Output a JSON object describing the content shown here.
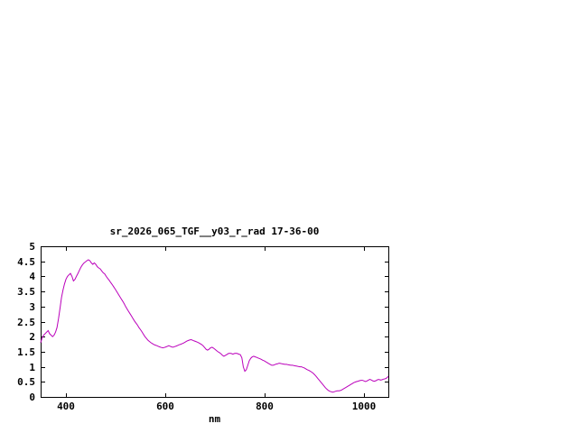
{
  "window": {
    "background": "#ffffff"
  },
  "chart_data": {
    "type": "line",
    "title": "sr_2026_065_TGF__y03_r_rad 17-36-00",
    "xlabel": "nm",
    "ylabel": "",
    "xlim": [
      350,
      1050
    ],
    "ylim": [
      0,
      5
    ],
    "xticks": [
      400,
      600,
      800,
      1000
    ],
    "yticks": [
      0,
      0.5,
      1,
      1.5,
      2,
      2.5,
      3,
      3.5,
      4,
      4.5,
      5
    ],
    "grid": false,
    "legend": "none",
    "line_color": "#bb00bb",
    "axis_color": "#000000",
    "text_color": "#000000",
    "points": [
      [
        350,
        1.8
      ],
      [
        353,
        1.95
      ],
      [
        356,
        2.05
      ],
      [
        359,
        2.1
      ],
      [
        362,
        2.15
      ],
      [
        365,
        2.2
      ],
      [
        368,
        2.1
      ],
      [
        371,
        2.05
      ],
      [
        374,
        2.0
      ],
      [
        377,
        2.05
      ],
      [
        380,
        2.15
      ],
      [
        383,
        2.3
      ],
      [
        386,
        2.6
      ],
      [
        389,
        2.95
      ],
      [
        392,
        3.3
      ],
      [
        395,
        3.55
      ],
      [
        398,
        3.75
      ],
      [
        401,
        3.9
      ],
      [
        404,
        4.0
      ],
      [
        407,
        4.05
      ],
      [
        410,
        4.1
      ],
      [
        413,
        4.0
      ],
      [
        416,
        3.85
      ],
      [
        419,
        3.9
      ],
      [
        422,
        4.0
      ],
      [
        425,
        4.1
      ],
      [
        428,
        4.2
      ],
      [
        431,
        4.3
      ],
      [
        434,
        4.38
      ],
      [
        437,
        4.44
      ],
      [
        440,
        4.48
      ],
      [
        443,
        4.52
      ],
      [
        446,
        4.55
      ],
      [
        449,
        4.52
      ],
      [
        452,
        4.45
      ],
      [
        455,
        4.4
      ],
      [
        458,
        4.45
      ],
      [
        461,
        4.4
      ],
      [
        464,
        4.32
      ],
      [
        467,
        4.28
      ],
      [
        470,
        4.25
      ],
      [
        473,
        4.18
      ],
      [
        476,
        4.12
      ],
      [
        479,
        4.08
      ],
      [
        482,
        4.0
      ],
      [
        485,
        3.93
      ],
      [
        488,
        3.87
      ],
      [
        491,
        3.8
      ],
      [
        494,
        3.73
      ],
      [
        497,
        3.66
      ],
      [
        500,
        3.58
      ],
      [
        503,
        3.5
      ],
      [
        506,
        3.42
      ],
      [
        509,
        3.34
      ],
      [
        512,
        3.26
      ],
      [
        515,
        3.18
      ],
      [
        518,
        3.1
      ],
      [
        521,
        3.0
      ],
      [
        524,
        2.92
      ],
      [
        527,
        2.84
      ],
      [
        530,
        2.76
      ],
      [
        533,
        2.68
      ],
      [
        536,
        2.6
      ],
      [
        539,
        2.52
      ],
      [
        542,
        2.45
      ],
      [
        545,
        2.38
      ],
      [
        548,
        2.3
      ],
      [
        551,
        2.23
      ],
      [
        554,
        2.16
      ],
      [
        557,
        2.08
      ],
      [
        560,
        2.0
      ],
      [
        563,
        1.94
      ],
      [
        566,
        1.88
      ],
      [
        569,
        1.84
      ],
      [
        572,
        1.8
      ],
      [
        575,
        1.77
      ],
      [
        578,
        1.74
      ],
      [
        581,
        1.72
      ],
      [
        584,
        1.7
      ],
      [
        587,
        1.68
      ],
      [
        590,
        1.66
      ],
      [
        593,
        1.64
      ],
      [
        596,
        1.63
      ],
      [
        599,
        1.64
      ],
      [
        602,
        1.66
      ],
      [
        605,
        1.68
      ],
      [
        608,
        1.7
      ],
      [
        611,
        1.68
      ],
      [
        614,
        1.66
      ],
      [
        617,
        1.65
      ],
      [
        620,
        1.67
      ],
      [
        623,
        1.69
      ],
      [
        626,
        1.71
      ],
      [
        629,
        1.73
      ],
      [
        632,
        1.75
      ],
      [
        635,
        1.77
      ],
      [
        638,
        1.79
      ],
      [
        641,
        1.82
      ],
      [
        644,
        1.85
      ],
      [
        647,
        1.87
      ],
      [
        650,
        1.89
      ],
      [
        653,
        1.9
      ],
      [
        656,
        1.88
      ],
      [
        659,
        1.86
      ],
      [
        662,
        1.84
      ],
      [
        665,
        1.82
      ],
      [
        668,
        1.8
      ],
      [
        671,
        1.77
      ],
      [
        674,
        1.74
      ],
      [
        677,
        1.7
      ],
      [
        680,
        1.64
      ],
      [
        683,
        1.58
      ],
      [
        686,
        1.55
      ],
      [
        689,
        1.58
      ],
      [
        692,
        1.63
      ],
      [
        695,
        1.65
      ],
      [
        698,
        1.62
      ],
      [
        701,
        1.58
      ],
      [
        704,
        1.54
      ],
      [
        707,
        1.5
      ],
      [
        710,
        1.47
      ],
      [
        713,
        1.43
      ],
      [
        716,
        1.38
      ],
      [
        719,
        1.35
      ],
      [
        722,
        1.38
      ],
      [
        725,
        1.41
      ],
      [
        728,
        1.44
      ],
      [
        731,
        1.45
      ],
      [
        734,
        1.44
      ],
      [
        737,
        1.42
      ],
      [
        740,
        1.44
      ],
      [
        743,
        1.45
      ],
      [
        746,
        1.44
      ],
      [
        749,
        1.42
      ],
      [
        752,
        1.4
      ],
      [
        755,
        1.3
      ],
      [
        758,
        1.0
      ],
      [
        761,
        0.85
      ],
      [
        764,
        0.9
      ],
      [
        767,
        1.05
      ],
      [
        770,
        1.2
      ],
      [
        773,
        1.28
      ],
      [
        776,
        1.33
      ],
      [
        779,
        1.35
      ],
      [
        782,
        1.33
      ],
      [
        785,
        1.31
      ],
      [
        788,
        1.29
      ],
      [
        791,
        1.27
      ],
      [
        794,
        1.25
      ],
      [
        797,
        1.22
      ],
      [
        800,
        1.2
      ],
      [
        803,
        1.17
      ],
      [
        806,
        1.14
      ],
      [
        809,
        1.11
      ],
      [
        812,
        1.08
      ],
      [
        815,
        1.05
      ],
      [
        818,
        1.05
      ],
      [
        821,
        1.07
      ],
      [
        824,
        1.09
      ],
      [
        827,
        1.1
      ],
      [
        830,
        1.12
      ],
      [
        833,
        1.11
      ],
      [
        836,
        1.1
      ],
      [
        839,
        1.09
      ],
      [
        842,
        1.08
      ],
      [
        845,
        1.08
      ],
      [
        848,
        1.07
      ],
      [
        851,
        1.06
      ],
      [
        854,
        1.05
      ],
      [
        857,
        1.05
      ],
      [
        860,
        1.04
      ],
      [
        863,
        1.03
      ],
      [
        866,
        1.02
      ],
      [
        869,
        1.01
      ],
      [
        872,
        1.0
      ],
      [
        875,
        1.0
      ],
      [
        878,
        0.98
      ],
      [
        881,
        0.96
      ],
      [
        884,
        0.93
      ],
      [
        887,
        0.9
      ],
      [
        890,
        0.88
      ],
      [
        893,
        0.85
      ],
      [
        896,
        0.82
      ],
      [
        899,
        0.78
      ],
      [
        902,
        0.73
      ],
      [
        905,
        0.67
      ],
      [
        908,
        0.61
      ],
      [
        911,
        0.55
      ],
      [
        914,
        0.49
      ],
      [
        917,
        0.43
      ],
      [
        920,
        0.37
      ],
      [
        923,
        0.31
      ],
      [
        926,
        0.26
      ],
      [
        929,
        0.22
      ],
      [
        932,
        0.19
      ],
      [
        935,
        0.17
      ],
      [
        938,
        0.16
      ],
      [
        941,
        0.17
      ],
      [
        944,
        0.19
      ],
      [
        947,
        0.2
      ],
      [
        950,
        0.2
      ],
      [
        953,
        0.21
      ],
      [
        956,
        0.23
      ],
      [
        959,
        0.26
      ],
      [
        962,
        0.29
      ],
      [
        965,
        0.32
      ],
      [
        968,
        0.35
      ],
      [
        971,
        0.38
      ],
      [
        974,
        0.41
      ],
      [
        977,
        0.44
      ],
      [
        980,
        0.47
      ],
      [
        983,
        0.49
      ],
      [
        986,
        0.51
      ],
      [
        989,
        0.52
      ],
      [
        992,
        0.54
      ],
      [
        995,
        0.55
      ],
      [
        998,
        0.55
      ],
      [
        1001,
        0.53
      ],
      [
        1004,
        0.51
      ],
      [
        1007,
        0.53
      ],
      [
        1010,
        0.56
      ],
      [
        1013,
        0.58
      ],
      [
        1016,
        0.56
      ],
      [
        1019,
        0.53
      ],
      [
        1022,
        0.52
      ],
      [
        1025,
        0.54
      ],
      [
        1028,
        0.57
      ],
      [
        1031,
        0.58
      ],
      [
        1034,
        0.56
      ],
      [
        1037,
        0.57
      ],
      [
        1040,
        0.59
      ],
      [
        1043,
        0.6
      ],
      [
        1046,
        0.62
      ],
      [
        1050,
        0.68
      ]
    ]
  }
}
